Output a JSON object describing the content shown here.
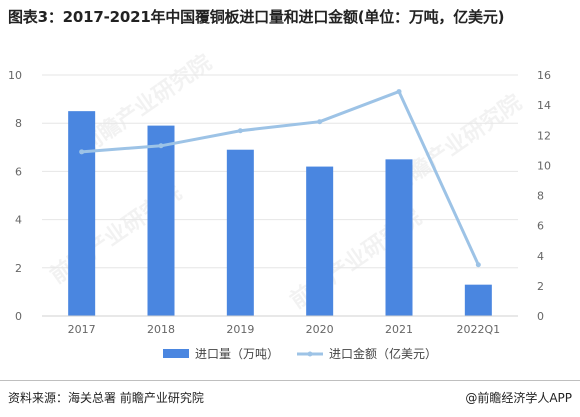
{
  "title": "图表3：2017-2021年中国覆铜板进口量和进口金额(单位：万吨，亿美元)",
  "footer": {
    "source": "资料来源：海关总署 前瞻产业研究院",
    "brand": "@前瞻经济学人APP"
  },
  "watermark": "前瞻产业研究院",
  "colors": {
    "bar": "#4A86E0",
    "line": "#9DC3E6",
    "grid": "#E6E6E6",
    "axis_text": "#666666"
  },
  "chart_data": {
    "type": "bar",
    "categories": [
      "2017",
      "2018",
      "2019",
      "2020",
      "2021",
      "2022Q1"
    ],
    "series": [
      {
        "name": "进口量（万吨）",
        "type": "bar",
        "axis": "left",
        "values": [
          8.5,
          7.9,
          6.9,
          6.2,
          6.5,
          1.3
        ]
      },
      {
        "name": "进口金额（亿美元）",
        "type": "line",
        "axis": "right",
        "values": [
          10.9,
          11.3,
          12.3,
          12.9,
          14.9,
          3.4
        ]
      }
    ],
    "y_left": {
      "lim": [
        0,
        10
      ],
      "ticks": [
        0,
        2,
        4,
        6,
        8,
        10
      ]
    },
    "y_right": {
      "lim": [
        0,
        16
      ],
      "ticks": [
        0,
        2,
        4,
        6,
        8,
        10,
        12,
        14,
        16
      ]
    },
    "grid": true,
    "legend_position": "bottom"
  }
}
